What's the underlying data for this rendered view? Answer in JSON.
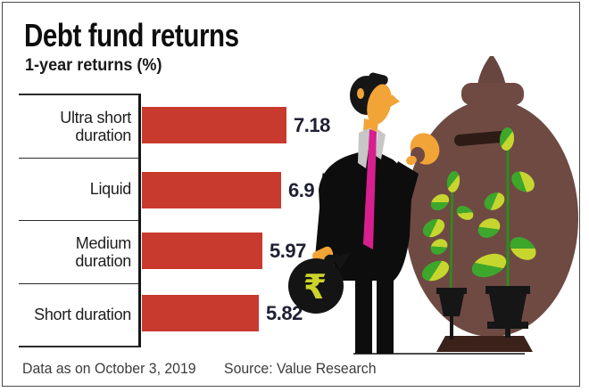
{
  "page": {
    "title": "Debt fund returns",
    "subtitle": "1-year returns (%)",
    "footer_left": "Data as on October 3, 2019",
    "footer_right": "Source: Value Research"
  },
  "chart_data": {
    "type": "bar",
    "orientation": "horizontal",
    "title": "Debt fund returns",
    "subtitle": "1-year returns (%)",
    "categories": [
      "Ultra short duration",
      "Liquid",
      "Medium duration",
      "Short duration"
    ],
    "values": [
      7.18,
      6.9,
      5.97,
      5.82
    ],
    "value_labels": [
      "7.18",
      "6.9",
      "5.97",
      "5.82"
    ],
    "unit": "%",
    "xlim": [
      0,
      7.18
    ],
    "grid": false,
    "legend": false,
    "bar_color": "#c83a2d",
    "data_note": "Data as on October 3, 2019",
    "source_note": "Source: Value Research"
  },
  "illustration": {
    "money_bag_symbol": "₹",
    "colors": {
      "bar_red": "#c83a2d",
      "pot_brown": "#6e4a43",
      "pot_shadow": "#57382f",
      "pot_base_dark": "#3a211a",
      "slot_dark": "#2e1b15",
      "leaf_green": "#3da72c",
      "leaf_yellow_green": "#c6d62f",
      "stem_green": "#2f8c1e",
      "planter_black": "#161616",
      "suit_black": "#0d0d0d",
      "skin_orange": "#f2a436",
      "hair_black": "#161616",
      "tie_magenta": "#d81f8f",
      "collar_gray": "#c7c7c7",
      "bag_black": "#141414",
      "rupee_yellow_green": "#ccd32b",
      "ground_gray": "#4a4a4a"
    }
  }
}
